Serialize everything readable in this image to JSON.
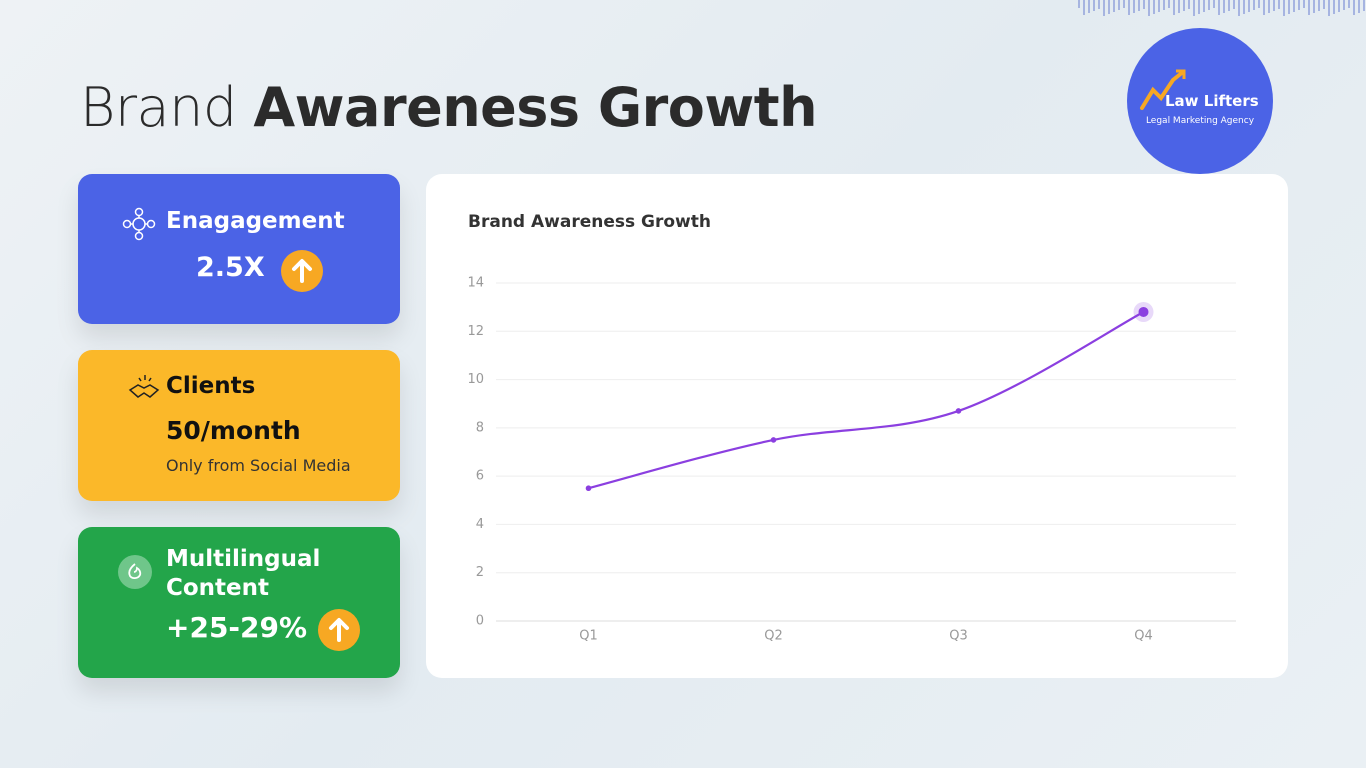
{
  "header": {
    "title_light": "Brand",
    "title_bold": "Awareness Growth"
  },
  "logo": {
    "name": "Law Lifters",
    "tagline": "Legal Marketing Agency"
  },
  "cards": [
    {
      "title": "Enagagement",
      "value": "2.5X"
    },
    {
      "title": "Clients",
      "value": "50/month",
      "note": "Only from Social Media"
    },
    {
      "title": "Multilingual Content",
      "value": "+25-29%"
    }
  ],
  "chart_data": {
    "type": "line",
    "title": "Brand Awareness Growth",
    "categories": [
      "Q1",
      "Q2",
      "Q3",
      "Q4"
    ],
    "series": [
      {
        "color": "#8b3fe0",
        "values": [
          5.5,
          7.5,
          8.7,
          12.8
        ]
      }
    ],
    "ylim": [
      0,
      14
    ],
    "yticks": [
      0,
      2,
      4,
      6,
      8,
      10,
      12,
      14
    ],
    "grid": true
  }
}
